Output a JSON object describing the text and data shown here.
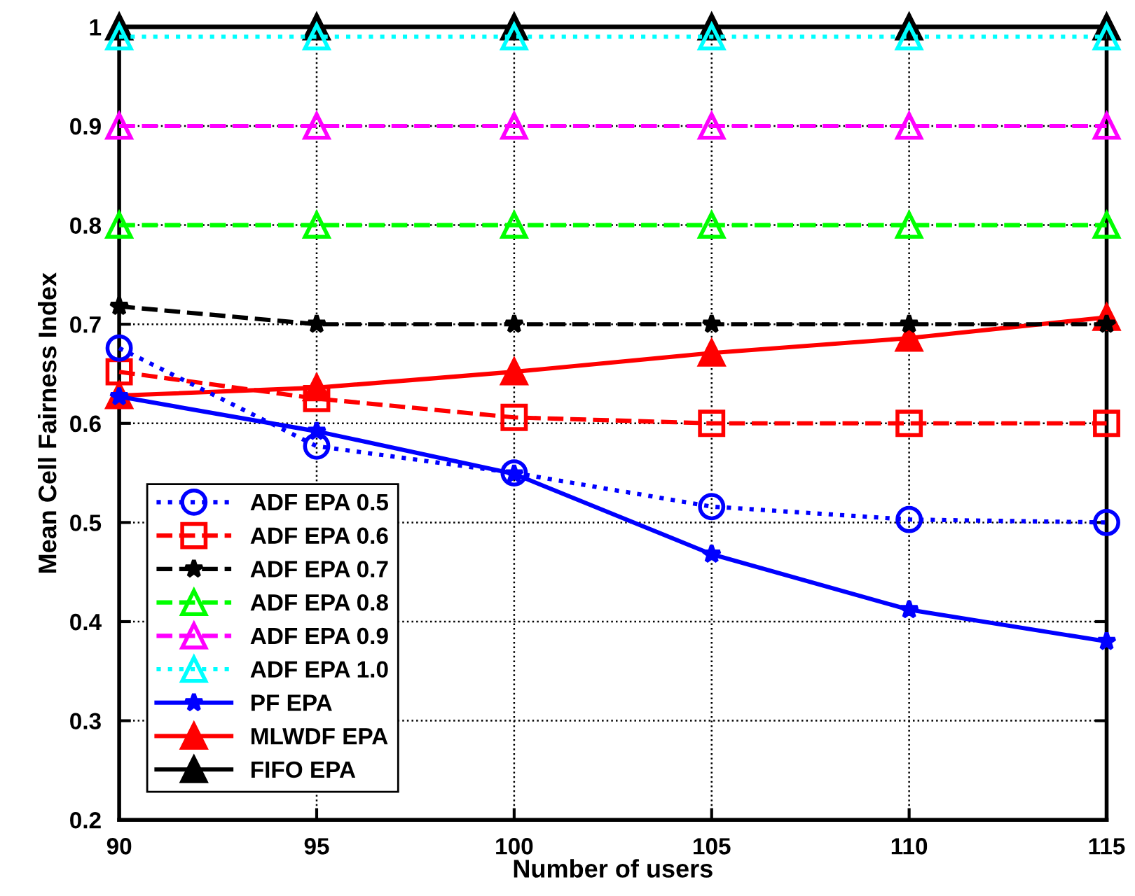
{
  "chart_data": {
    "type": "line",
    "xlabel": "Number of users",
    "ylabel": "Mean Cell Fairness Index",
    "x": [
      90,
      95,
      100,
      105,
      110,
      115
    ],
    "xlim": [
      90,
      115
    ],
    "xticks": [
      90,
      95,
      100,
      105,
      110,
      115
    ],
    "ylim": [
      0.2,
      1
    ],
    "yticks": [
      0.2,
      0.3,
      0.4,
      0.5,
      0.6,
      0.7,
      0.8,
      0.9,
      1
    ],
    "grid": true,
    "legend": "bottom left",
    "series": [
      {
        "name": "ADF EPA 0.5",
        "color": "#0000ff",
        "marker": "circle",
        "line_style": "dotted",
        "values": [
          0.676,
          0.577,
          0.55,
          0.516,
          0.503,
          0.5
        ]
      },
      {
        "name": "ADF EPA 0.6",
        "color": "#ff0000",
        "marker": "square",
        "line_style": "dashed",
        "values": [
          0.652,
          0.625,
          0.606,
          0.6,
          0.6,
          0.6
        ]
      },
      {
        "name": "ADF EPA 0.7",
        "color": "#000000",
        "marker": "star",
        "line_style": "dashed",
        "values": [
          0.718,
          0.7,
          0.7,
          0.7,
          0.7,
          0.7
        ]
      },
      {
        "name": "ADF EPA 0.8",
        "color": "#00ff00",
        "marker": "triangle",
        "line_style": "dashed",
        "values": [
          0.8,
          0.8,
          0.8,
          0.8,
          0.8,
          0.8
        ]
      },
      {
        "name": "ADF EPA 0.9",
        "color": "#ff00ff",
        "marker": "triangle",
        "line_style": "dashed",
        "values": [
          0.9,
          0.9,
          0.9,
          0.9,
          0.9,
          0.9
        ]
      },
      {
        "name": "ADF EPA 1.0",
        "color": "#00ffff",
        "marker": "triangle",
        "line_style": "dotted",
        "values": [
          0.99,
          0.99,
          0.99,
          0.99,
          0.99,
          0.99
        ]
      },
      {
        "name": "PF EPA",
        "color": "#0000ff",
        "marker": "star",
        "line_style": "solid",
        "values": [
          0.627,
          0.592,
          0.549,
          0.468,
          0.412,
          0.38
        ]
      },
      {
        "name": "MLWDF EPA",
        "color": "#ff0000",
        "marker": "triangle",
        "line_style": "solid",
        "values": [
          0.628,
          0.636,
          0.652,
          0.671,
          0.686,
          0.707
        ]
      },
      {
        "name": "FIFO EPA",
        "color": "#000000",
        "marker": "triangle",
        "line_style": "solid",
        "values": [
          1,
          1,
          1,
          1,
          1,
          1
        ]
      }
    ]
  }
}
